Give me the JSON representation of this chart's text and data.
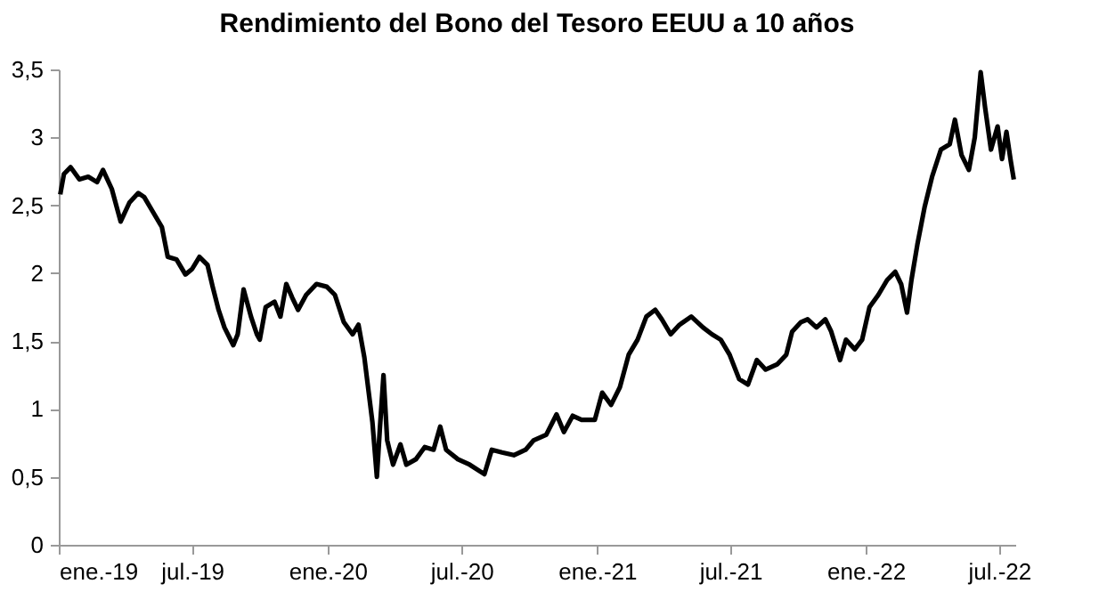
{
  "chart_data": {
    "type": "line",
    "title": "Rendimiento del Bono del Tesoro EEUU a 10 años",
    "x": [
      "2019-01-03",
      "2019-01-08",
      "2019-01-17",
      "2019-01-29",
      "2019-02-10",
      "2019-02-22",
      "2019-03-02",
      "2019-03-14",
      "2019-03-26",
      "2019-04-07",
      "2019-04-19",
      "2019-04-27",
      "2019-05-09",
      "2019-05-21",
      "2019-05-29",
      "2019-06-10",
      "2019-06-22",
      "2019-07-01",
      "2019-07-11",
      "2019-07-22",
      "2019-07-29",
      "2019-08-06",
      "2019-08-14",
      "2019-08-26",
      "2019-09-01",
      "2019-09-09",
      "2019-09-19",
      "2019-09-27",
      "2019-10-01",
      "2019-10-09",
      "2019-10-21",
      "2019-10-29",
      "2019-11-06",
      "2019-11-14",
      "2019-11-22",
      "2019-12-03",
      "2019-12-17",
      "2019-12-31",
      "2020-01-11",
      "2020-01-23",
      "2020-02-04",
      "2020-02-12",
      "2020-02-20",
      "2020-03-02",
      "2020-03-08",
      "2020-03-12",
      "2020-03-17",
      "2020-03-22",
      "2020-03-30",
      "2020-04-09",
      "2020-04-17",
      "2020-04-30",
      "2020-05-12",
      "2020-05-24",
      "2020-06-02",
      "2020-06-10",
      "2020-06-26",
      "2020-07-12",
      "2020-08-01",
      "2020-08-11",
      "2020-08-25",
      "2020-09-10",
      "2020-09-26",
      "2020-10-07",
      "2020-10-24",
      "2020-11-07",
      "2020-11-17",
      "2020-11-29",
      "2020-12-11",
      "2020-12-29",
      "2021-01-08",
      "2021-01-20",
      "2021-02-01",
      "2021-02-13",
      "2021-02-25",
      "2021-03-09",
      "2021-03-21",
      "2021-03-30",
      "2021-04-11",
      "2021-04-23",
      "2021-05-09",
      "2021-05-25",
      "2021-06-06",
      "2021-06-18",
      "2021-06-30",
      "2021-07-13",
      "2021-07-25",
      "2021-08-06",
      "2021-08-18",
      "2021-09-03",
      "2021-09-15",
      "2021-09-23",
      "2021-10-05",
      "2021-10-14",
      "2021-10-26",
      "2021-11-07",
      "2021-11-15",
      "2021-11-27",
      "2021-12-05",
      "2021-12-17",
      "2021-12-27",
      "2022-01-06",
      "2022-01-18",
      "2022-01-30",
      "2022-02-10",
      "2022-02-18",
      "2022-02-26",
      "2022-03-04",
      "2022-03-12",
      "2022-03-22",
      "2022-04-01",
      "2022-04-13",
      "2022-04-25",
      "2022-05-02",
      "2022-05-11",
      "2022-05-21",
      "2022-05-29",
      "2022-06-06",
      "2022-06-12",
      "2022-06-20",
      "2022-06-29",
      "2022-07-05",
      "2022-07-11",
      "2022-07-17",
      "2022-07-21"
    ],
    "series": [
      {
        "color": "#000000",
        "values": [
          2.58,
          2.73,
          2.78,
          2.69,
          2.71,
          2.67,
          2.76,
          2.62,
          2.38,
          2.52,
          2.59,
          2.56,
          2.45,
          2.34,
          2.12,
          2.1,
          1.99,
          2.03,
          2.12,
          2.06,
          1.9,
          1.73,
          1.6,
          1.47,
          1.55,
          1.88,
          1.68,
          1.55,
          1.51,
          1.75,
          1.79,
          1.68,
          1.92,
          1.82,
          1.73,
          1.84,
          1.92,
          1.9,
          1.84,
          1.64,
          1.55,
          1.62,
          1.38,
          0.9,
          0.5,
          0.85,
          1.25,
          0.77,
          0.59,
          0.74,
          0.59,
          0.63,
          0.72,
          0.7,
          0.87,
          0.7,
          0.63,
          0.59,
          0.52,
          0.7,
          0.68,
          0.66,
          0.7,
          0.77,
          0.81,
          0.96,
          0.83,
          0.95,
          0.92,
          0.92,
          1.12,
          1.03,
          1.16,
          1.4,
          1.51,
          1.68,
          1.73,
          1.66,
          1.55,
          1.62,
          1.68,
          1.6,
          1.55,
          1.51,
          1.4,
          1.22,
          1.18,
          1.36,
          1.29,
          1.33,
          1.4,
          1.57,
          1.64,
          1.66,
          1.6,
          1.66,
          1.57,
          1.36,
          1.51,
          1.44,
          1.51,
          1.75,
          1.84,
          1.95,
          2.01,
          1.92,
          1.71,
          1.95,
          2.21,
          2.49,
          2.71,
          2.91,
          2.95,
          3.13,
          2.87,
          2.76,
          3.0,
          3.48,
          3.22,
          2.91,
          3.08,
          2.84,
          3.04,
          2.82,
          2.69
        ]
      }
    ],
    "xlim": [
      "2019-01-01",
      "2022-07-23"
    ],
    "xticks": [
      {
        "value": "2019-01-01",
        "label": "ene.-19"
      },
      {
        "value": "2019-07-01",
        "label": "jul.-19"
      },
      {
        "value": "2020-01-01",
        "label": "ene.-20"
      },
      {
        "value": "2020-07-01",
        "label": "jul.-20"
      },
      {
        "value": "2021-01-01",
        "label": "ene.-21"
      },
      {
        "value": "2021-07-01",
        "label": "jul.-21"
      },
      {
        "value": "2022-01-01",
        "label": "ene.-22"
      },
      {
        "value": "2022-07-01",
        "label": "jul.-22"
      }
    ],
    "ylim": [
      0,
      3.5
    ],
    "yticks": [
      0,
      {
        "value": 0.5,
        "label": "0,5"
      },
      1,
      {
        "value": 1.5,
        "label": "1,5"
      },
      2,
      {
        "value": 2.5,
        "label": "2,5"
      },
      3,
      {
        "value": 3.5,
        "label": "3,5"
      }
    ],
    "grid": false,
    "legend": false,
    "marker": "none",
    "line_style": "solid"
  }
}
